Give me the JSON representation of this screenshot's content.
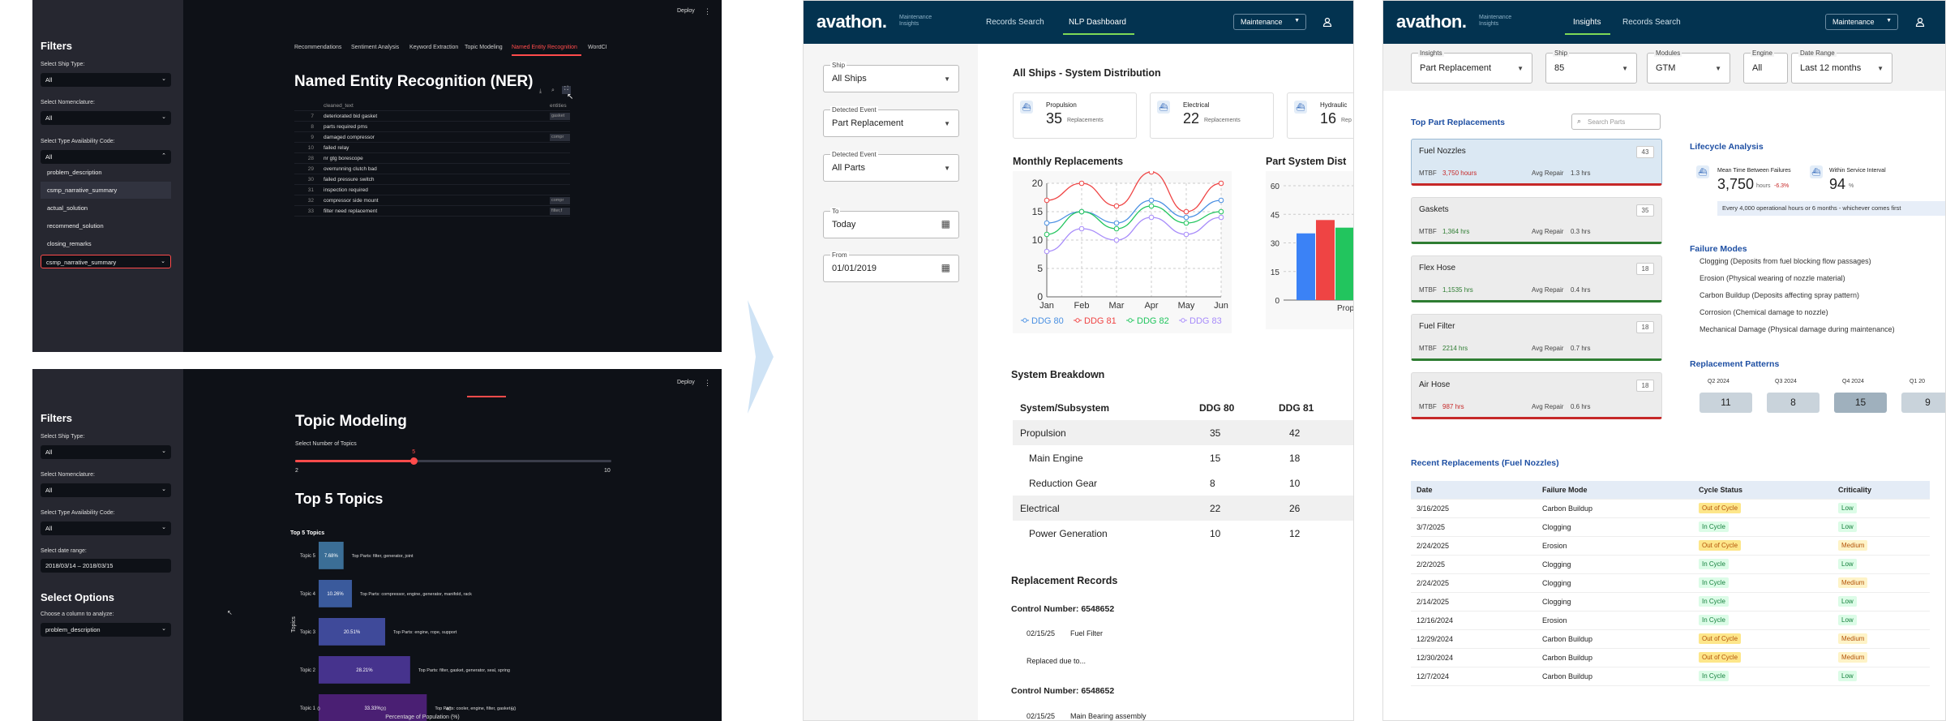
{
  "arrow_color": "#cfe3f5",
  "ner_panel": {
    "deploy": "Deploy",
    "menu": "⋮",
    "filters_title": "Filters",
    "ship_type_label": "Select Ship Type:",
    "ship_type_value": "All",
    "nomenclature_label": "Select Nomenclature:",
    "nomenclature_value": "All",
    "availability_label": "Select Type Availability Code:",
    "availability_value": "All",
    "dropdown_options": [
      "problem_description",
      "csmp_narrative_summary",
      "actual_solution",
      "recommend_solution",
      "closing_remarks"
    ],
    "column_value": "csmp_narrative_summary",
    "tabs": [
      "Recommendations",
      "Sentiment Analysis",
      "Keyword Extraction",
      "Topic Modeling",
      "Named Entity Recognition",
      "WordCl"
    ],
    "title": "Named Entity Recognition (NER)",
    "col_text": "cleaned_text",
    "col_entities": "entities",
    "rows": [
      {
        "i": "7",
        "t": "deteriorated bid gasket",
        "e": "gasket"
      },
      {
        "i": "8",
        "t": "parts required pms",
        "e": ""
      },
      {
        "i": "9",
        "t": "damaged compressor",
        "e": "compr"
      },
      {
        "i": "10",
        "t": "failed relay",
        "e": ""
      },
      {
        "i": "28",
        "t": "nr gtg borescope",
        "e": ""
      },
      {
        "i": "29",
        "t": "overrunning clutch bad",
        "e": ""
      },
      {
        "i": "30",
        "t": "failed pressure switch",
        "e": ""
      },
      {
        "i": "31",
        "t": "inspection required",
        "e": ""
      },
      {
        "i": "32",
        "t": "compressor side mount",
        "e": "compr"
      },
      {
        "i": "33",
        "t": "filter need replacement",
        "e": "filter,f"
      }
    ]
  },
  "topic_panel": {
    "deploy": "Deploy",
    "menu": "⋮",
    "filters_title": "Filters",
    "ship_type_label": "Select Ship Type:",
    "ship_type_value": "All",
    "nomenclature_label": "Select Nomenclature:",
    "nomenclature_value": "All",
    "availability_label": "Select Type Availability Code:",
    "availability_value": "All",
    "date_label": "Select date range:",
    "date_value": "2018/03/14 – 2018/03/15",
    "select_options": "Select Options",
    "column_label": "Choose a column to analyze:",
    "column_value": "problem_description",
    "title": "Topic Modeling",
    "slider_label": "Select Number of Topics",
    "slider_min": "2",
    "slider_max": "10",
    "slider_value": "5",
    "top5": "Top 5 Topics",
    "chart_title": "Top 5 Topics",
    "ylabel": "Topics",
    "xlabel": "Percentage of Population (%)",
    "ticks": [
      "0",
      "20",
      "40",
      "60"
    ]
  },
  "chart_data": [
    {
      "type": "bar",
      "title": "Top 5 Topics",
      "xlabel": "Percentage of Population (%)",
      "ylabel": "Topics",
      "xlim": [
        0,
        70
      ],
      "categories": [
        "Topic 5",
        "Topic 4",
        "Topic 3",
        "Topic 2",
        "Topic 1"
      ],
      "values": [
        7.68,
        10.26,
        20.51,
        28.21,
        33.33
      ],
      "labels": [
        "7.68%",
        "10.26%",
        "20.51%",
        "28.21%",
        "33.33%"
      ],
      "annotations": [
        "Top Parts: filter, generator, joint",
        "Top Parts: compressor, engine, generator, manifold, rack",
        "Top Parts: engine, rope, support",
        "Top Parts: filter, gasket, generator, seal, spring",
        "Top Parts: cooler, engine, filter, gasket"
      ],
      "colors": [
        "#3b6e96",
        "#3a5a9c",
        "#3f4a9a",
        "#46338d",
        "#4a1f73"
      ]
    },
    {
      "type": "line",
      "title": "Monthly Replacements",
      "categories": [
        "Jan",
        "Feb",
        "Mar",
        "Apr",
        "May",
        "Jun"
      ],
      "ylim": [
        0,
        20
      ],
      "yticks": [
        "0",
        "5",
        "10",
        "15",
        "20"
      ],
      "series": [
        {
          "name": "DDG 80",
          "color": "#4a90e2",
          "values": [
            13,
            15,
            13,
            17,
            14,
            17
          ]
        },
        {
          "name": "DDG 81",
          "color": "#ef4444",
          "values": [
            17,
            20,
            16,
            22,
            15,
            20
          ]
        },
        {
          "name": "DDG 82",
          "color": "#22c55e",
          "values": [
            11,
            15,
            12,
            16,
            13,
            15
          ]
        },
        {
          "name": "DDG 83",
          "color": "#a78bfa",
          "values": [
            8,
            12,
            10,
            14,
            11,
            14
          ]
        }
      ]
    },
    {
      "type": "bar",
      "title": "Part System Dist",
      "ylim": [
        0,
        60
      ],
      "yticks": [
        "0",
        "15",
        "30",
        "45",
        "60"
      ],
      "categories": [
        "Propulsi"
      ],
      "series": [
        {
          "name": "",
          "color": "#3b82f6",
          "values": [
            35
          ]
        },
        {
          "name": "",
          "color": "#ef4444",
          "values": [
            42
          ]
        },
        {
          "name": "",
          "color": "#22c55e",
          "values": [
            38
          ]
        },
        {
          "name": "",
          "color": "#a78bfa",
          "values": [
            40
          ]
        }
      ]
    }
  ],
  "nlp": {
    "logo": "avathon.",
    "logo_sub1": "Maintenance",
    "logo_sub2": "Insights",
    "nav_records": "Records Search",
    "nav_nlp": "NLP Dashboard",
    "module": "Maintenance",
    "ship_label": "Ship",
    "ship_value": "All Ships",
    "event_label": "Detected Event",
    "event_value": "Part Replacement",
    "event2_label": "Detected Event",
    "event2_value": "All Parts",
    "to_label": "To",
    "to_value": "Today",
    "from_label": "From",
    "from_value": "01/01/2019",
    "dist_title": "All Ships - System Distribution",
    "cards": [
      {
        "name": "Propulsion",
        "value": "35",
        "unit": "Replacements"
      },
      {
        "name": "Electrical",
        "value": "22",
        "unit": "Replacements"
      },
      {
        "name": "Hydraulic",
        "value": "16",
        "unit": "Rep"
      }
    ],
    "monthly_title": "Monthly Replacements",
    "partdist_title": "Part System Dist",
    "breakdown_title": "System Breakdown",
    "col_sys": "System/Subsystem",
    "col_80": "DDG 80",
    "col_81": "DDG 81",
    "rows": [
      {
        "name": "Propulsion",
        "a": "35",
        "b": "42",
        "group": true
      },
      {
        "name": "Main Engine",
        "a": "15",
        "b": "18",
        "group": false
      },
      {
        "name": "Reduction Gear",
        "a": "8",
        "b": "10",
        "group": false
      },
      {
        "name": "Electrical",
        "a": "22",
        "b": "26",
        "group": true
      },
      {
        "name": "Power Generation",
        "a": "10",
        "b": "12",
        "group": false
      }
    ],
    "records_title": "Replacement Records",
    "control1": "Control Number: 6548652",
    "rec1_date": "02/15/25",
    "rec1_part": "Fuel Filter",
    "rec1_note": "Replaced due to...",
    "control2": "Control Number: 6548652",
    "rec2_date": "02/15/25",
    "rec2_part": "Main Bearing assembly"
  },
  "insights": {
    "logo": "avathon.",
    "logo_sub1": "Maintenance",
    "logo_sub2": "Insights",
    "nav_insights": "Insights",
    "nav_records": "Records Search",
    "module": "Maintenance",
    "f_insights_label": "Insights",
    "f_insights_value": "Part Replacement",
    "f_ship_label": "Ship",
    "f_ship_value": "85",
    "f_modules_label": "Modules",
    "f_modules_value": "GTM",
    "f_engine_label": "Engine",
    "f_engine_value": "All",
    "f_date_label": "Date Range",
    "f_date_value": "Last 12 months",
    "top_title": "Top Part Replacements",
    "search_placeholder": "Search Parts",
    "parts": [
      {
        "name": "Fuel Nozzles",
        "count": "43",
        "mtbf": "3,750 hours",
        "repair": "1.3 hrs",
        "color": "#c62828"
      },
      {
        "name": "Gaskets",
        "count": "35",
        "mtbf": "1,364 hrs",
        "repair": "0.3 hrs",
        "color": "#2e7d32"
      },
      {
        "name": "Flex Hose",
        "count": "18",
        "mtbf": "1,1535 hrs",
        "repair": "0.4 hrs",
        "color": "#2e7d32"
      },
      {
        "name": "Fuel Filter",
        "count": "18",
        "mtbf": "2214 hrs",
        "repair": "0.7 hrs",
        "color": "#2e7d32"
      },
      {
        "name": "Air Hose",
        "count": "18",
        "mtbf": "987 hrs",
        "repair": "0.6 hrs",
        "color": "#c62828"
      }
    ],
    "mtbf_label": "MTBF",
    "repair_label": "Avg Repair",
    "lifecycle_title": "Lifecycle Analysis",
    "mtbf_card_title": "Mean Time Between Failures",
    "mtbf_card_value": "3,750",
    "mtbf_card_unit": "hours",
    "mtbf_card_delta": "-6.3%",
    "service_title": "Within Service Interval",
    "service_value": "94",
    "service_unit": "%",
    "service_note": "Every 4,000 operational hours or 6 months - whichever comes first",
    "failure_title": "Failure Modes",
    "failures": [
      "Clogging (Deposits from fuel blocking flow passages)",
      "Erosion (Physical wearing of nozzle material)",
      "Carbon Buildup (Deposits affecting spray pattern)",
      "Corrosion (Chemical damage to nozzle)",
      "Mechanical Damage (Physical damage during maintenance)"
    ],
    "patterns_title": "Replacement Patterns",
    "patterns": [
      {
        "q": "Q2 2024",
        "v": "11"
      },
      {
        "q": "Q3 2024",
        "v": "8"
      },
      {
        "q": "Q4 2024",
        "v": "15"
      },
      {
        "q": "Q1 20",
        "v": "9"
      }
    ],
    "recent_title": "Recent Replacements (Fuel Nozzles)",
    "rc_date": "Date",
    "rc_mode": "Failure Mode",
    "rc_cycle": "Cycle Status",
    "rc_crit": "Criticality",
    "recent": [
      {
        "d": "3/16/2025",
        "m": "Carbon Buildup",
        "c": "Out of Cycle",
        "k": "Low"
      },
      {
        "d": "3/7/2025",
        "m": "Clogging",
        "c": "In Cycle",
        "k": "Low"
      },
      {
        "d": "2/24/2025",
        "m": "Erosion",
        "c": "Out of Cycle",
        "k": "Medium"
      },
      {
        "d": "2/2/2025",
        "m": "Clogging",
        "c": "In Cycle",
        "k": "Low"
      },
      {
        "d": "2/24/2025",
        "m": "Clogging",
        "c": "In Cycle",
        "k": "Medium"
      },
      {
        "d": "2/14/2025",
        "m": "Clogging",
        "c": "In Cycle",
        "k": "Low"
      },
      {
        "d": "12/16/2024",
        "m": "Erosion",
        "c": "In Cycle",
        "k": "Low"
      },
      {
        "d": "12/29/2024",
        "m": "Carbon Buildup",
        "c": "Out of Cycle",
        "k": "Medium"
      },
      {
        "d": "12/30/2024",
        "m": "Carbon Buildup",
        "c": "Out of Cycle",
        "k": "Medium"
      },
      {
        "d": "12/7/2024",
        "m": "Carbon Buildup",
        "c": "In Cycle",
        "k": "Low"
      }
    ]
  }
}
